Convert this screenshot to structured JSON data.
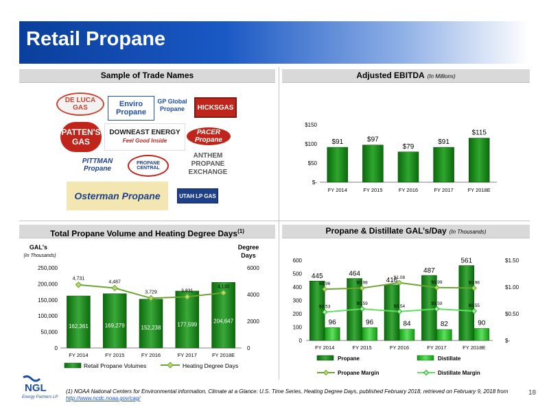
{
  "page": {
    "title": "Retail Propane",
    "page_number": "18"
  },
  "sections": {
    "trade_names": {
      "title": "Sample of Trade Names"
    },
    "ebitda": {
      "title": "Adjusted EBITDA",
      "subtitle": "(In Millions)"
    },
    "volume": {
      "title": "Total Propane Volume and Heating Degree Days",
      "footnote_ref": "(1)"
    },
    "gals": {
      "title": "Propane & Distillate GAL’s/Day",
      "subtitle": "(In Thousands)"
    }
  },
  "logos": [
    "DE LUCA GAS",
    "Enviro Propane",
    "GP Global Propane",
    "HICKSGAS",
    "PATTEN'S GAS",
    "DOWNEAST ENERGY",
    "Feel Good Inside",
    "PACER Propane",
    "PITTMAN Propane",
    "PROPANE CENTRAL",
    "ANTHEM PROPANE EXCHANGE",
    "Osterman Propane",
    "UTAH LP GAS"
  ],
  "chart_data": [
    {
      "type": "bar",
      "title": "Adjusted EBITDA (In Millions)",
      "categories": [
        "FY 2014",
        "FY 2015",
        "FY 2016",
        "FY 2017",
        "FY 2018E"
      ],
      "values": [
        91,
        97,
        79,
        91,
        115
      ],
      "value_labels": [
        "$91",
        "$97",
        "$79",
        "$91",
        "$115"
      ],
      "y_ticks": [
        "$-",
        "$50",
        "$100",
        "$150"
      ],
      "ylim": [
        0,
        150
      ],
      "colors": {
        "bar_dark": "#0b6a0b",
        "bar_light": "#2fa62f"
      }
    },
    {
      "type": "bar",
      "title": "Total Propane Volume and Heating Degree Days",
      "categories": [
        "FY 2014",
        "FY 2015",
        "FY 2016",
        "FY 2017",
        "FY 2018E"
      ],
      "series": [
        {
          "name": "Retail Propane Volumes",
          "values": [
            162361,
            169279,
            152238,
            177599,
            204647
          ],
          "labels": [
            "162,361",
            "169,279",
            "152,238",
            "177,599",
            "204,647"
          ]
        },
        {
          "name": "Heating Degree Days",
          "type": "line",
          "axis": "right",
          "values": [
            4731,
            4487,
            3729,
            3831,
            4130
          ],
          "labels": [
            "4,731",
            "4,487",
            "3,729",
            "3,831",
            "4,130"
          ]
        }
      ],
      "ylabel_left": "GAL's",
      "ylabel_left_sub": "(In Thousands)",
      "ylabel_right": "Degree Days",
      "left_ticks": [
        "0",
        "50,000",
        "100,000",
        "150,000",
        "200,000",
        "250,000"
      ],
      "right_ticks": [
        "0",
        "2000",
        "4000",
        "6000"
      ],
      "ylim_left": [
        0,
        250000
      ],
      "ylim_right": [
        0,
        6000
      ],
      "colors": {
        "bar": "#0b6a0b",
        "line": "#6aa52f",
        "marker": "#b4d86a"
      }
    },
    {
      "type": "bar",
      "title": "Propane & Distillate GAL's/Day (In Thousands)",
      "categories": [
        "FY 2014",
        "FY 2015",
        "FY 2016",
        "FY 2017",
        "FY 2018E"
      ],
      "series": [
        {
          "name": "Propane",
          "values": [
            445,
            464,
            416,
            487,
            561
          ],
          "labels": [
            "445",
            "464",
            "416",
            "487",
            "561"
          ]
        },
        {
          "name": "Distillate",
          "values": [
            96,
            96,
            84,
            82,
            90
          ],
          "labels": [
            "96",
            "96",
            "84",
            "82",
            "90"
          ]
        },
        {
          "name": "Propane Margin",
          "type": "line",
          "axis": "right",
          "values": [
            0.96,
            0.98,
            1.08,
            0.99,
            0.98
          ],
          "labels": [
            "$0.96",
            "$0.98",
            "$1.08",
            "$0.99",
            "$0.98"
          ]
        },
        {
          "name": "Distillate Margin",
          "type": "line",
          "axis": "right",
          "values": [
            0.53,
            0.59,
            0.54,
            0.59,
            0.55
          ],
          "labels": [
            "$0.53",
            "$0.59",
            "$0.54",
            "$0.59",
            "$0.55"
          ]
        }
      ],
      "left_ticks": [
        "0",
        "100",
        "200",
        "300",
        "400",
        "500",
        "600"
      ],
      "right_ticks": [
        "$-",
        "$0.50",
        "$1.00",
        "$1.50"
      ],
      "ylim_left": [
        0,
        600
      ],
      "ylim_right": [
        0,
        1.5
      ],
      "colors": {
        "propane": "#0b6a0b",
        "distillate": "#22b522",
        "propane_margin": "#6aa52f",
        "distillate_margin": "#5fe05f"
      }
    }
  ],
  "footer": {
    "text": "(1) NOAA National Centers for Environmental information, Climate at a Glance: U.S. Time Series, Heating Degree Days, published February 2018, retrieved on February 9, 2018 from ",
    "link": "http://www.ncdc.noaa.gov/cag/",
    "logo_text": "NGL",
    "logo_sub": "Energy Partners LP"
  }
}
